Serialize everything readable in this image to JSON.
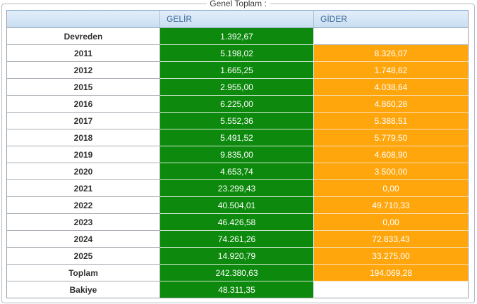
{
  "window": {
    "group_title": "Genel Toplam :"
  },
  "colors": {
    "gelir_cell": "#0d8a0d",
    "gider_cell": "#ffa60d",
    "header_bg_top": "#e3eefa",
    "header_bg_bottom": "#c7ddf1",
    "header_text": "#3f6b9b",
    "value_text": "#ffffff",
    "label_text": "#2e2e2e"
  },
  "table": {
    "columns": [
      {
        "label": ""
      },
      {
        "label": "GELİR"
      },
      {
        "label": "GİDER"
      }
    ],
    "rows": [
      {
        "label": "Devreden",
        "gelir": "1.392,67",
        "gider": ""
      },
      {
        "label": "2011",
        "gelir": "5.198,02",
        "gider": "8.326,07"
      },
      {
        "label": "2012",
        "gelir": "1.665,25",
        "gider": "1.748,62"
      },
      {
        "label": "2015",
        "gelir": "2.955,00",
        "gider": "4.038,64"
      },
      {
        "label": "2016",
        "gelir": "6.225,00",
        "gider": "4.860,28"
      },
      {
        "label": "2017",
        "gelir": "5.552,36",
        "gider": "5.388,51"
      },
      {
        "label": "2018",
        "gelir": "5.491,52",
        "gider": "5.779,50"
      },
      {
        "label": "2019",
        "gelir": "9.835,00",
        "gider": "4.608,90"
      },
      {
        "label": "2020",
        "gelir": "4.653,74",
        "gider": "3.500,00"
      },
      {
        "label": "2021",
        "gelir": "23.299,43",
        "gider": "0,00"
      },
      {
        "label": "2022",
        "gelir": "40.504,01",
        "gider": "49.710,33"
      },
      {
        "label": "2023",
        "gelir": "46.426,58",
        "gider": "0,00"
      },
      {
        "label": "2024",
        "gelir": "74.261,26",
        "gider": "72.833,43"
      },
      {
        "label": "2025",
        "gelir": "14.920,79",
        "gider": "33.275,00"
      },
      {
        "label": "Toplam",
        "gelir": "242.380,63",
        "gider": "194.069,28"
      },
      {
        "label": "Bakiye",
        "gelir": "48.311,35",
        "gider": ""
      }
    ]
  }
}
